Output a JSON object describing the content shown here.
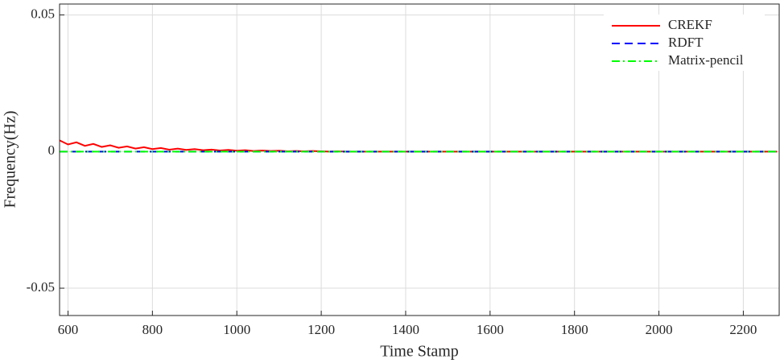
{
  "chart_data": {
    "type": "line",
    "ylabel": "Frequency(Hz)",
    "xlabel": "Time Stamp",
    "x": [
      580,
      600,
      620,
      640,
      660,
      680,
      700,
      720,
      740,
      760,
      780,
      800,
      820,
      840,
      860,
      880,
      900,
      920,
      940,
      960,
      980,
      1000,
      1020,
      1040,
      1060,
      1080,
      1100,
      1120,
      1140,
      1160,
      1180,
      1200,
      1220,
      1240,
      1260,
      1280,
      1300,
      1320,
      1340,
      1360,
      1380,
      1400,
      1420,
      1440,
      1460,
      1480,
      1500,
      1520,
      1540,
      1560,
      1580,
      1600,
      1620,
      1640,
      1660,
      1680,
      1700,
      1720,
      1740,
      1760,
      1780,
      1800,
      1820,
      1840,
      1860,
      1880,
      1900,
      1920,
      1940,
      1960,
      1980,
      2000,
      2020,
      2040,
      2060,
      2080,
      2100,
      2120,
      2140,
      2160,
      2180,
      2200,
      2220,
      2240,
      2260,
      2280
    ],
    "series": [
      {
        "name": "CREKF",
        "color": "#ff0000",
        "linestyle": "solid",
        "values": [
          0.0041,
          0.0026,
          0.0034,
          0.0021,
          0.0028,
          0.0017,
          0.0023,
          0.0014,
          0.0019,
          0.0011,
          0.0016,
          0.0009,
          0.0013,
          0.0007,
          0.0011,
          0.0006,
          0.0009,
          0.0005,
          0.0007,
          0.0004,
          0.0006,
          0.0003,
          0.0005,
          0.0002,
          0.0004,
          0.0002,
          0.0003,
          0.0001,
          0.0002,
          0.0001,
          0.0002,
          0.0001,
          0,
          0.0001,
          0,
          0,
          0,
          0,
          0,
          0,
          0,
          0,
          0,
          0,
          0,
          0,
          0,
          0,
          0,
          0,
          0,
          0,
          0,
          0,
          0,
          0,
          0,
          0,
          0,
          0,
          0,
          0,
          0,
          0,
          0,
          0,
          0,
          0,
          0,
          0,
          0,
          0,
          0,
          0,
          0,
          0,
          0,
          0,
          0,
          0,
          0,
          0,
          0,
          0,
          0,
          0
        ]
      },
      {
        "name": "RDFT",
        "color": "#0000ff",
        "linestyle": "dashed",
        "values": [
          0,
          0,
          0,
          0,
          0,
          0,
          0,
          0,
          0,
          0,
          0,
          0,
          0,
          0,
          0,
          0,
          0,
          0,
          0,
          0,
          0,
          0,
          0,
          0,
          0,
          0,
          0,
          0,
          0,
          0,
          0,
          0,
          0,
          0,
          0,
          0,
          0,
          0,
          0,
          0,
          0,
          0,
          0,
          0,
          0,
          0,
          0,
          0,
          0,
          0,
          0,
          0,
          0,
          0,
          0,
          0,
          0,
          0,
          0,
          0,
          0,
          0,
          0,
          0,
          0,
          0,
          0,
          0,
          0,
          0,
          0,
          0,
          0,
          0,
          0,
          0,
          0,
          0,
          0,
          0,
          0,
          0,
          0,
          0,
          0,
          0
        ]
      },
      {
        "name": "Matrix-pencil",
        "color": "#00ff00",
        "linestyle": "dashdot",
        "values": [
          0,
          0,
          0,
          0,
          0,
          0,
          0,
          0,
          0,
          0,
          0,
          0,
          0,
          0,
          0,
          0,
          0,
          0,
          0,
          0,
          0,
          0,
          0,
          0,
          0,
          0,
          0,
          0,
          0,
          0,
          0,
          0,
          0,
          0,
          0,
          0,
          0,
          0,
          0,
          0,
          0,
          0,
          0,
          0,
          0,
          0,
          0,
          0,
          0,
          0,
          0,
          0,
          0,
          0,
          0,
          0,
          0,
          0,
          0,
          0,
          0,
          0,
          0,
          0,
          0,
          0,
          0,
          0,
          0,
          0,
          0,
          0,
          0,
          0,
          0,
          0,
          0,
          0,
          0,
          0,
          0,
          0,
          0,
          0,
          0,
          0
        ]
      }
    ],
    "xlim": [
      580,
      2285
    ],
    "xticks": [
      600,
      800,
      1000,
      1200,
      1400,
      1600,
      1800,
      2000,
      2200
    ],
    "ylim": [
      -0.06,
      0.054
    ],
    "yticks": [
      -0.05,
      0,
      0.05
    ],
    "grid": true,
    "legend": "upper right"
  }
}
